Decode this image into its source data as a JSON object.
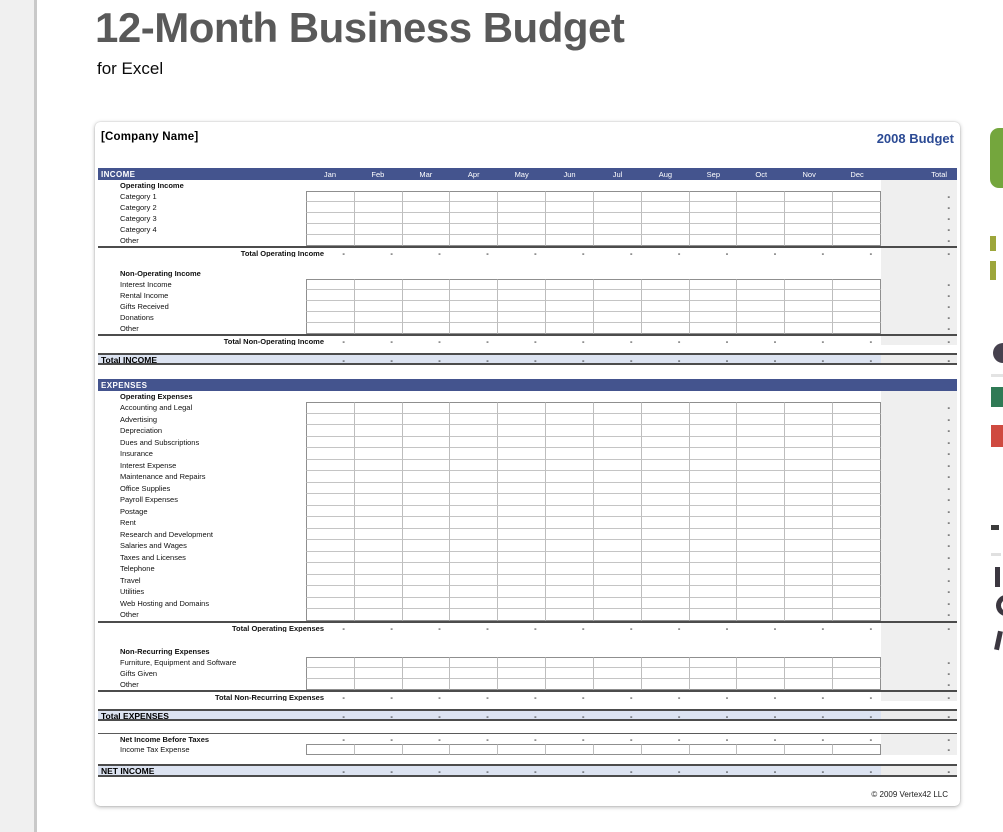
{
  "page": {
    "title": "12-Month Business Budget",
    "subtitle": "for Excel"
  },
  "sheet": {
    "company_name": "[Company Name]",
    "budget_label": "2008 Budget",
    "months": [
      "Jan",
      "Feb",
      "Mar",
      "Apr",
      "May",
      "Jun",
      "Jul",
      "Aug",
      "Sep",
      "Oct",
      "Nov",
      "Dec"
    ],
    "total_header": "Total",
    "dash": "-",
    "income": {
      "section_label": "INCOME",
      "groups": [
        {
          "header": "Operating Income",
          "rows": [
            "Category 1",
            "Category 2",
            "Category 3",
            "Category 4",
            "Other"
          ],
          "total_label": "Total Operating Income"
        },
        {
          "header": "Non-Operating Income",
          "rows": [
            "Interest Income",
            "Rental Income",
            "Gifts Received",
            "Donations",
            "Other"
          ],
          "total_label": "Total Non-Operating Income"
        }
      ],
      "total_label": "Total INCOME"
    },
    "expenses": {
      "section_label": "EXPENSES",
      "groups": [
        {
          "header": "Operating Expenses",
          "rows": [
            "Accounting and Legal",
            "Advertising",
            "Depreciation",
            "Dues and Subscriptions",
            "Insurance",
            "Interest Expense",
            "Maintenance and Repairs",
            "Office Supplies",
            "Payroll Expenses",
            "Postage",
            "Rent",
            "Research and Development",
            "Salaries and Wages",
            "Taxes and Licenses",
            "Telephone",
            "Travel",
            "Utilities",
            "Web Hosting and Domains",
            "Other"
          ],
          "total_label": "Total Operating Expenses"
        },
        {
          "header": "Non-Recurring Expenses",
          "rows": [
            "Furniture, Equipment and Software",
            "Gifts Given",
            "Other"
          ],
          "total_label": "Total Non-Recurring Expenses"
        }
      ],
      "total_label": "Total EXPENSES"
    },
    "net": {
      "before_taxes_label": "Net Income Before Taxes",
      "tax_label": "Income Tax Expense",
      "net_income_label": "NET INCOME"
    },
    "copyright": "© 2009 Vertex42 LLC"
  },
  "colors": {
    "bar": "#44548e",
    "highlight": "#dce3f1",
    "highlight_total": "#ececec",
    "total_col": "#efefef",
    "budget_text": "#2b4a94",
    "title_text": "#595959",
    "green_button": "#74a63d",
    "olive": "#9da63b",
    "dark_green": "#2f7a55",
    "red": "#cf4a40",
    "dark_fragment": "#3b3740"
  }
}
